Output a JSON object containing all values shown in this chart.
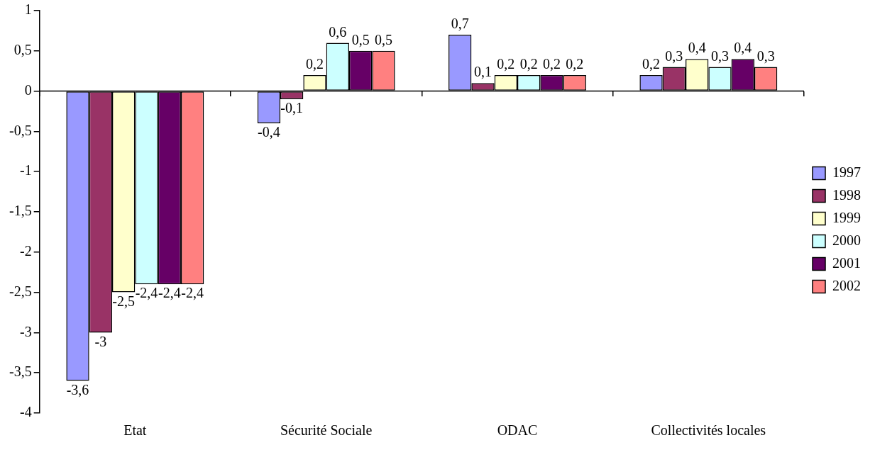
{
  "chart_data": {
    "type": "bar",
    "categories": [
      "Etat",
      "Sécurité Sociale",
      "ODAC",
      "Collectivités locales"
    ],
    "series": [
      {
        "name": "1997",
        "color": "#9999ff",
        "values": [
          -3.6,
          -0.4,
          0.7,
          0.2
        ],
        "value_labels": [
          "-3,6",
          "-0,4",
          "0,7",
          "0,2"
        ]
      },
      {
        "name": "1998",
        "color": "#993366",
        "values": [
          -3,
          -0.1,
          0.1,
          0.3
        ],
        "value_labels": [
          "-3",
          "-0,1",
          "0,1",
          "0,3"
        ]
      },
      {
        "name": "1999",
        "color": "#ffffcc",
        "values": [
          -2.5,
          0.2,
          0.2,
          0.4
        ],
        "value_labels": [
          "-2,5",
          "0,2",
          "0,2",
          "0,4"
        ]
      },
      {
        "name": "2000",
        "color": "#ccffff",
        "values": [
          -2.4,
          0.6,
          0.2,
          0.3
        ],
        "value_labels": [
          "-2,4",
          "0,6",
          "0,2",
          "0,3"
        ]
      },
      {
        "name": "2001",
        "color": "#660066",
        "values": [
          -2.4,
          0.5,
          0.2,
          0.4
        ],
        "value_labels": [
          "-2,4",
          "0,5",
          "0,2",
          "0,4"
        ]
      },
      {
        "name": "2002",
        "color": "#ff8080",
        "values": [
          -2.4,
          0.5,
          0.2,
          0.3
        ],
        "value_labels": [
          "-2,4",
          "0,5",
          "0,2",
          "0,3"
        ]
      }
    ],
    "ylim": [
      -4,
      1
    ],
    "yticks": [
      {
        "value": -4,
        "label": "-4"
      },
      {
        "value": -3.5,
        "label": "-3,5"
      },
      {
        "value": -3,
        "label": "-3"
      },
      {
        "value": -2.5,
        "label": "-2,5"
      },
      {
        "value": -2,
        "label": "-2"
      },
      {
        "value": -1.5,
        "label": "-1,5"
      },
      {
        "value": -1,
        "label": "-1"
      },
      {
        "value": -0.5,
        "label": "-0,5"
      },
      {
        "value": 0,
        "label": "0"
      },
      {
        "value": 0.5,
        "label": "0,5"
      },
      {
        "value": 1,
        "label": "1"
      }
    ],
    "ref_lines": [
      {
        "axis": "y",
        "value": 0,
        "color": "#000000"
      }
    ],
    "grid": false,
    "legend": "right"
  }
}
